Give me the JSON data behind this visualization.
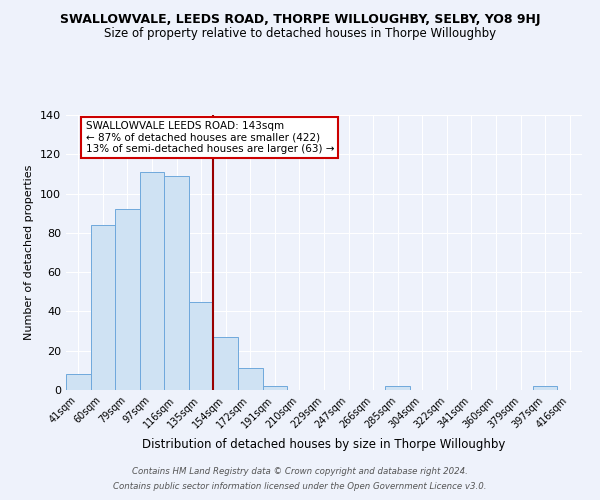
{
  "title": "SWALLOWVALE, LEEDS ROAD, THORPE WILLOUGHBY, SELBY, YO8 9HJ",
  "subtitle": "Size of property relative to detached houses in Thorpe Willoughby",
  "xlabel": "Distribution of detached houses by size in Thorpe Willoughby",
  "ylabel": "Number of detached properties",
  "categories": [
    "41sqm",
    "60sqm",
    "79sqm",
    "97sqm",
    "116sqm",
    "135sqm",
    "154sqm",
    "172sqm",
    "191sqm",
    "210sqm",
    "229sqm",
    "247sqm",
    "266sqm",
    "285sqm",
    "304sqm",
    "322sqm",
    "341sqm",
    "360sqm",
    "379sqm",
    "397sqm",
    "416sqm"
  ],
  "values": [
    8,
    84,
    92,
    111,
    109,
    45,
    27,
    11,
    2,
    0,
    0,
    0,
    0,
    2,
    0,
    0,
    0,
    0,
    0,
    2,
    0
  ],
  "bar_color": "#cfe2f3",
  "bar_edge_color": "#6fa8dc",
  "red_line_x": 5.5,
  "annotation_text": "SWALLOWVALE LEEDS ROAD: 143sqm\n← 87% of detached houses are smaller (422)\n13% of semi-detached houses are larger (63) →",
  "annotation_box_color": "#ffffff",
  "annotation_box_edge": "#cc0000",
  "footer1": "Contains HM Land Registry data © Crown copyright and database right 2024.",
  "footer2": "Contains public sector information licensed under the Open Government Licence v3.0.",
  "bg_color": "#eef2fb",
  "ylim": [
    0,
    140
  ],
  "yticks": [
    0,
    20,
    40,
    60,
    80,
    100,
    120,
    140
  ],
  "title_fontsize": 9,
  "subtitle_fontsize": 8.5,
  "ylabel_fontsize": 8,
  "xlabel_fontsize": 8.5
}
